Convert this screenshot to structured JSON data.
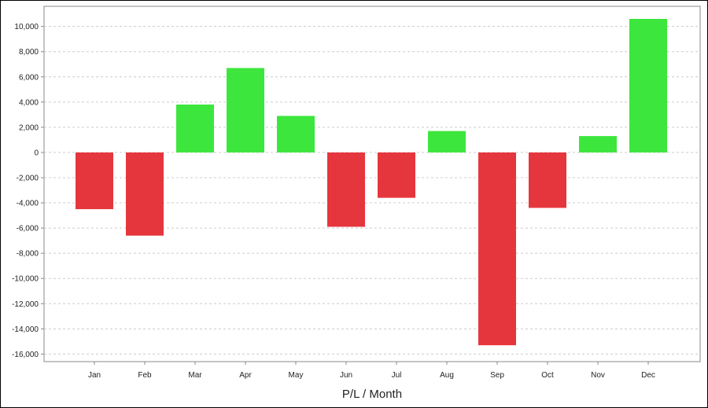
{
  "chart_data": {
    "type": "bar",
    "title": "",
    "xlabel": "P/L / Month",
    "ylabel": "",
    "categories": [
      "Jan",
      "Feb",
      "Mar",
      "Apr",
      "May",
      "Jun",
      "Jul",
      "Aug",
      "Sep",
      "Oct",
      "Nov",
      "Dec"
    ],
    "values": [
      -4500,
      -6600,
      3800,
      6700,
      2900,
      -5900,
      -3600,
      1700,
      -15300,
      -4400,
      1300,
      10600
    ],
    "ylim": [
      -16600,
      11600
    ],
    "yticks": [
      10000,
      8000,
      6000,
      4000,
      2000,
      0,
      -2000,
      -4000,
      -6000,
      -8000,
      -10000,
      -12000,
      -14000,
      -16000
    ],
    "ytick_labels": [
      "10,000",
      "8,000",
      "6,000",
      "4,000",
      "2,000",
      "0",
      "-2,000",
      "-4,000",
      "-6,000",
      "-8,000",
      "-10,000",
      "-12,000",
      "-14,000",
      "-16,000"
    ],
    "grid": true,
    "legend": "none",
    "colors": {
      "positive": "#3de63d",
      "negative": "#e6363d",
      "grid": "#cccccc",
      "axis": "#888888"
    }
  }
}
